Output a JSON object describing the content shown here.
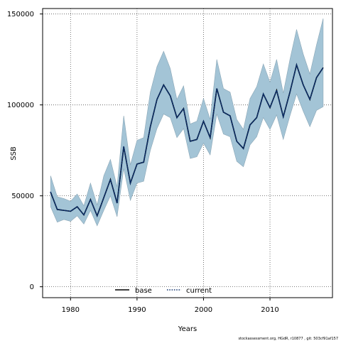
{
  "chart_data": {
    "type": "line",
    "xlabel": "Years",
    "ylabel": "SSB",
    "xlim": [
      1975.8,
      2019.4
    ],
    "ylim": [
      -6000,
      153000
    ],
    "x_ticks": [
      1980,
      1990,
      2000,
      2010
    ],
    "y_ticks": [
      0,
      50000,
      100000,
      150000
    ],
    "x_tick_labels": [
      "1980",
      "1990",
      "2000",
      "2010"
    ],
    "y_tick_labels": [
      "0",
      "50000",
      "100000",
      "150000"
    ],
    "grid": true,
    "legend_position": "bottom",
    "series": [
      {
        "name": "base",
        "style": "solid",
        "color": "#000000",
        "x": [
          1977,
          1978,
          1979,
          1980,
          1981,
          1982,
          1983,
          1984,
          1985,
          1986,
          1987,
          1988,
          1989,
          1990,
          1991,
          1992,
          1993,
          1994,
          1995,
          1996,
          1997,
          1998,
          1999,
          2000,
          2001,
          2002,
          2003,
          2004,
          2005,
          2006,
          2007,
          2008,
          2009,
          2010,
          2011,
          2012,
          2013,
          2014,
          2015,
          2016,
          2017,
          2018
        ],
        "values": [
          52000,
          42500,
          42000,
          41500,
          44000,
          39500,
          48000,
          39000,
          49000,
          59000,
          46000,
          77000,
          57000,
          67500,
          68500,
          88000,
          103000,
          111000,
          105000,
          93000,
          98000,
          80000,
          81000,
          91000,
          82000,
          109000,
          96000,
          94000,
          80000,
          76000,
          89000,
          93000,
          106000,
          98500,
          108000,
          93500,
          107000,
          122000,
          111000,
          103000,
          115000,
          120500
        ]
      },
      {
        "name": "current",
        "style": "dotted",
        "color": "#0b2f6b",
        "x": [
          1977,
          1978,
          1979,
          1980,
          1981,
          1982,
          1983,
          1984,
          1985,
          1986,
          1987,
          1988,
          1989,
          1990,
          1991,
          1992,
          1993,
          1994,
          1995,
          1996,
          1997,
          1998,
          1999,
          2000,
          2001,
          2002,
          2003,
          2004,
          2005,
          2006,
          2007,
          2008,
          2009,
          2010,
          2011,
          2012,
          2013,
          2014,
          2015,
          2016,
          2017,
          2018
        ],
        "values": [
          52000,
          42500,
          42000,
          41500,
          44000,
          39500,
          48000,
          39000,
          49000,
          59000,
          46000,
          77000,
          57000,
          67500,
          68500,
          88000,
          103000,
          111000,
          105000,
          93000,
          98000,
          80000,
          81000,
          91000,
          82000,
          109000,
          96000,
          94000,
          80000,
          76000,
          89000,
          93000,
          106000,
          98500,
          108000,
          93500,
          107000,
          122000,
          111000,
          103000,
          115000,
          120500
        ]
      }
    ],
    "confidence_band": {
      "color": "#a3c4d6",
      "lower": [
        44000,
        35500,
        37000,
        36000,
        39000,
        34500,
        42000,
        33500,
        42000,
        50000,
        38500,
        65000,
        47500,
        57000,
        58000,
        75000,
        87000,
        95000,
        93000,
        82000,
        87000,
        70500,
        71500,
        79000,
        72500,
        95000,
        84000,
        82500,
        69000,
        66000,
        78000,
        82500,
        93000,
        86500,
        94500,
        81000,
        94000,
        106000,
        96500,
        88000,
        97000,
        99000
      ],
      "upper": [
        61000,
        49500,
        48500,
        47000,
        51000,
        44500,
        57000,
        45000,
        61000,
        70000,
        55000,
        94000,
        67000,
        80500,
        82000,
        107000,
        121000,
        129500,
        120000,
        103000,
        110500,
        89500,
        91000,
        103500,
        92000,
        125000,
        109000,
        107000,
        92000,
        86500,
        103500,
        110000,
        122500,
        112500,
        125000,
        106500,
        125000,
        141500,
        128000,
        117000,
        133000,
        147500
      ]
    },
    "footer": "stockassessment.org, HGdR, r10877 , git: 503cf91af157"
  },
  "colors": {
    "band_fill": "#a3c4d6",
    "band_edge": "#8aa6b6",
    "base_line": "#000000",
    "current_line": "#0b2f6b",
    "grid": "#555555"
  }
}
